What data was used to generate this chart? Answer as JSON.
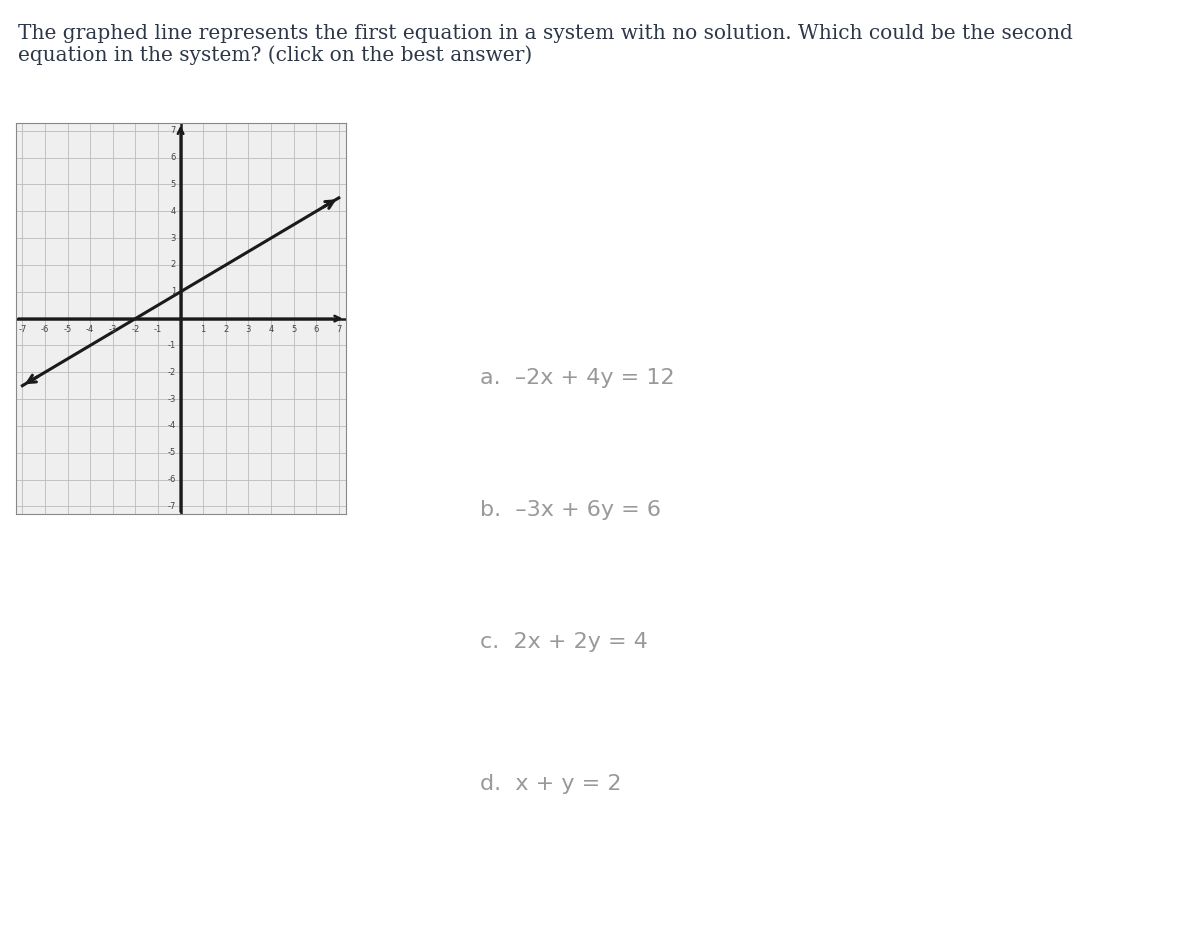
{
  "title_text": "The graphed line represents the first equation in a system with no solution. Which could be the second\nequation in the system? (click on the best answer)",
  "title_color": "#2d3748",
  "title_fontsize": 14.5,
  "graph_xlim": [
    -7,
    7
  ],
  "graph_ylim": [
    -7,
    7
  ],
  "line_slope": 0.5,
  "line_intercept": 1,
  "line_color": "#1a1a1a",
  "line_width": 2.2,
  "grid_color": "#bbbbbb",
  "axis_color": "#1a1a1a",
  "answer_a": "a.  –2x + 4y = 12",
  "answer_b": "b.  –3x + 6y = 6",
  "answer_c": "c.  2x + 2y = 4",
  "answer_d": "d.  x + y = 2",
  "answer_color": "#999999",
  "answer_fontsize": 16,
  "bg_color": "#ffffff",
  "graph_bg": "#efefef"
}
